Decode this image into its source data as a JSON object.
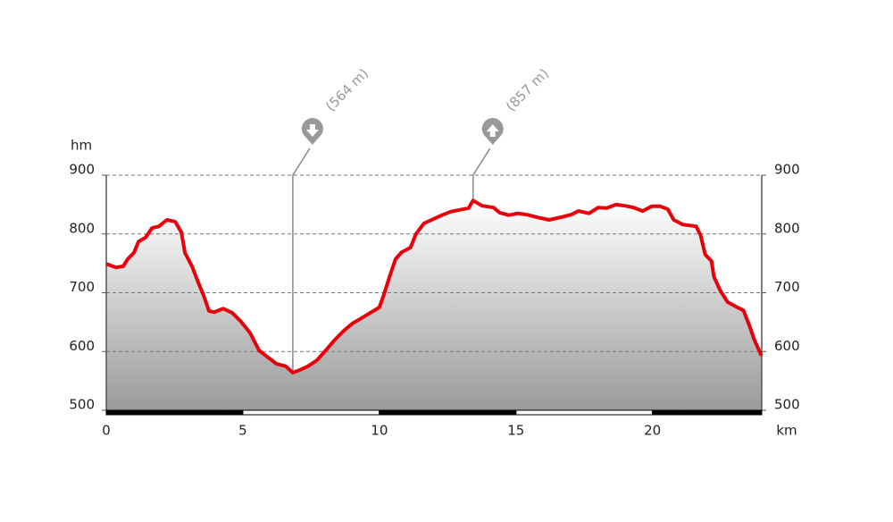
{
  "chart_data": {
    "type": "area",
    "x_label": "km",
    "y_label": "hm",
    "x": [
      0,
      0.36,
      0.62,
      0.78,
      1.01,
      1.18,
      1.44,
      1.67,
      1.93,
      2.22,
      2.52,
      2.75,
      2.88,
      3.14,
      3.37,
      3.56,
      3.76,
      3.95,
      4.28,
      4.61,
      4.93,
      5.26,
      5.59,
      5.92,
      6.24,
      6.57,
      6.83,
      7.06,
      7.39,
      7.71,
      8.04,
      8.37,
      8.69,
      9.02,
      9.35,
      9.67,
      10.0,
      10.16,
      10.39,
      10.59,
      10.82,
      11.14,
      11.34,
      11.63,
      11.96,
      12.29,
      12.61,
      12.94,
      13.27,
      13.43,
      13.76,
      14.18,
      14.41,
      14.74,
      15.07,
      15.39,
      15.72,
      16.21,
      16.7,
      17.03,
      17.29,
      17.68,
      18.01,
      18.33,
      18.66,
      18.99,
      19.31,
      19.64,
      19.97,
      20.29,
      20.56,
      20.78,
      21.11,
      21.6,
      21.76,
      21.93,
      22.16,
      22.25,
      22.48,
      22.75,
      23.07,
      23.33,
      23.56,
      23.73,
      23.99
    ],
    "series": [
      {
        "color": "#e8000b",
        "values": [
          749,
          743,
          745,
          757,
          768,
          787,
          794,
          810,
          813,
          824,
          821,
          803,
          768,
          745,
          717,
          696,
          669,
          667,
          673,
          666,
          651,
          632,
          602,
          590,
          579,
          575,
          564,
          568,
          575,
          585,
          602,
          620,
          635,
          648,
          657,
          666,
          675,
          696,
          730,
          757,
          769,
          777,
          800,
          818,
          825,
          832,
          838,
          841,
          844,
          857,
          848,
          845,
          836,
          832,
          835,
          833,
          829,
          824,
          829,
          833,
          839,
          835,
          845,
          844,
          850,
          848,
          845,
          839,
          847,
          847,
          842,
          824,
          816,
          813,
          798,
          765,
          754,
          727,
          704,
          684,
          676,
          670,
          643,
          620,
          593
        ]
      }
    ],
    "xlim": [
      0,
      24
    ],
    "xticks": [
      0,
      5,
      10,
      15,
      20
    ],
    "ylim": [
      500,
      900
    ],
    "yticks": [
      500,
      600,
      700,
      800,
      900
    ],
    "grid": true,
    "min_marker": {
      "x": 6.83,
      "value": 564,
      "label": "(564 m)"
    },
    "max_marker": {
      "x": 13.43,
      "value": 857,
      "label": "(857 m)"
    }
  }
}
